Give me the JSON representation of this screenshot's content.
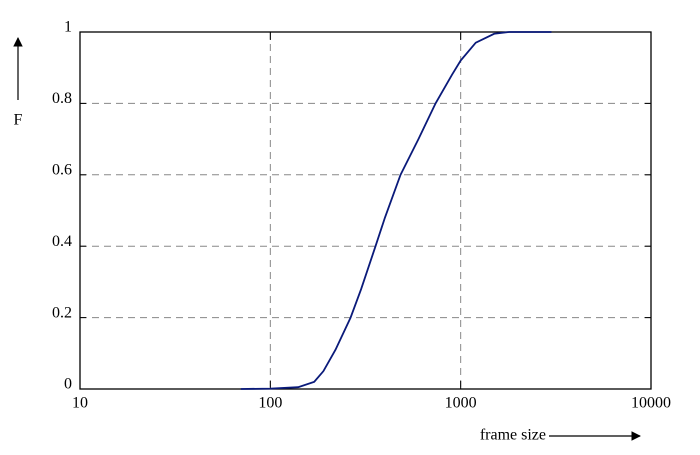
{
  "chart_data": {
    "type": "line",
    "xlabel": "frame size",
    "ylabel": "F",
    "xscale": "log",
    "grid": true,
    "xlim": [
      10,
      10000
    ],
    "ylim": [
      0,
      1
    ],
    "xticks": [
      10,
      100,
      1000,
      10000
    ],
    "yticks": [
      0,
      0.2,
      0.4,
      0.6,
      0.8,
      1
    ],
    "x": [
      70,
      100,
      140,
      170,
      190,
      220,
      264,
      300,
      357,
      400,
      483,
      600,
      738,
      900,
      1000,
      1200,
      1500,
      1800,
      3000
    ],
    "series": [
      {
        "color": "#0a1a7a",
        "values": [
          0,
          0.001,
          0.005,
          0.02,
          0.05,
          0.11,
          0.2,
          0.28,
          0.4,
          0.48,
          0.6,
          0.7,
          0.8,
          0.88,
          0.92,
          0.97,
          0.995,
          1,
          1
        ]
      }
    ]
  }
}
